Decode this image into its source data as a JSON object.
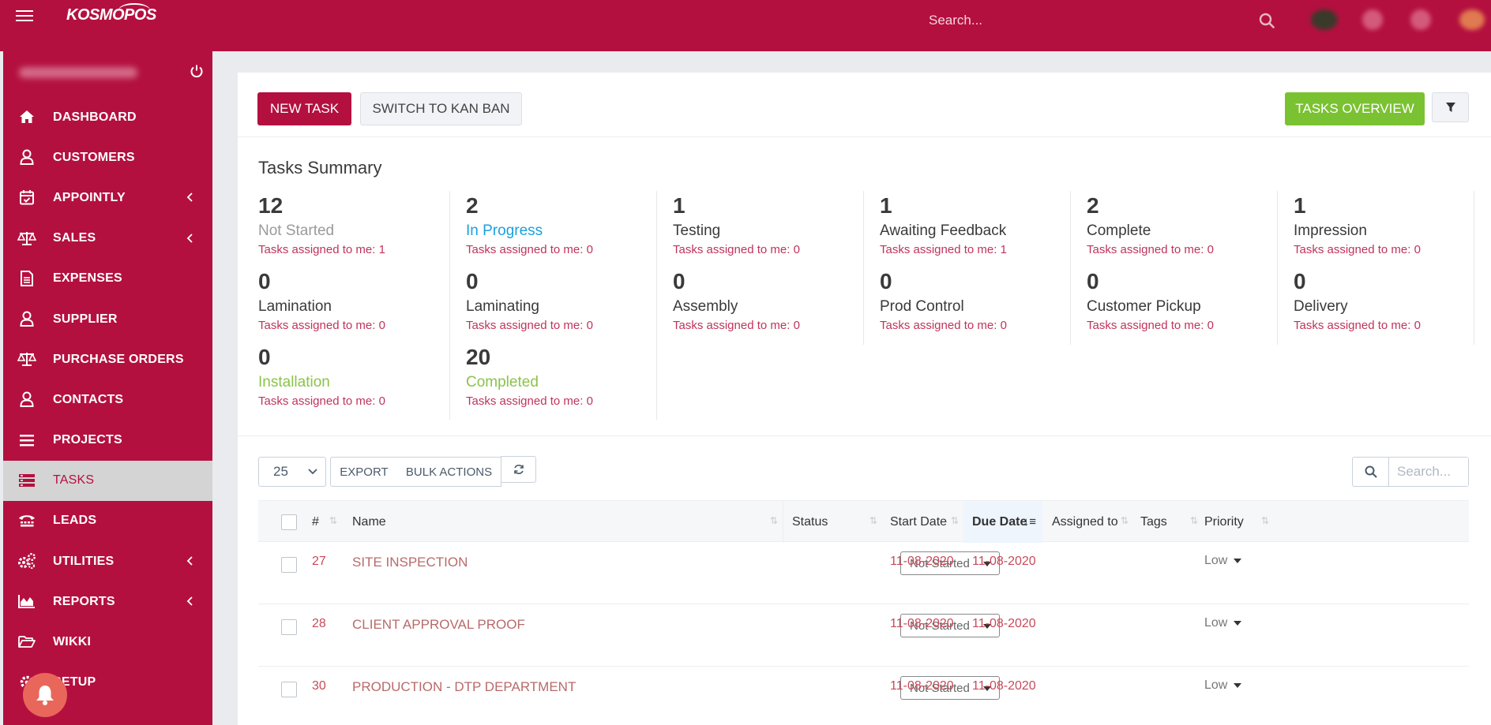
{
  "brand": {
    "logo_text": "KOSMOPOS"
  },
  "topbar": {
    "search_placeholder": "Search..."
  },
  "sidebar": {
    "items": [
      {
        "label": "DASHBOARD"
      },
      {
        "label": "CUSTOMERS"
      },
      {
        "label": "APPOINTLY"
      },
      {
        "label": "SALES"
      },
      {
        "label": "EXPENSES"
      },
      {
        "label": "SUPPLIER"
      },
      {
        "label": "PURCHASE ORDERS"
      },
      {
        "label": "CONTACTS"
      },
      {
        "label": "PROJECTS"
      },
      {
        "label": "TASKS"
      },
      {
        "label": "LEADS"
      },
      {
        "label": "UTILITIES"
      },
      {
        "label": "REPORTS"
      },
      {
        "label": "WIKKI"
      },
      {
        "label": "SETUP"
      }
    ],
    "active": "TASKS"
  },
  "toolbar": {
    "new_task": "NEW TASK",
    "switch_kanban": "SWITCH TO KAN BAN",
    "tasks_overview": "TASKS OVERVIEW"
  },
  "summary": {
    "title": "Tasks Summary",
    "stats": [
      {
        "count": "12",
        "name": "Not Started",
        "meta": "Tasks assigned to me: 1"
      },
      {
        "count": "2",
        "name": "In Progress",
        "meta": "Tasks assigned to me: 0"
      },
      {
        "count": "1",
        "name": "Testing",
        "meta": "Tasks assigned to me: 0"
      },
      {
        "count": "1",
        "name": "Awaiting Feedback",
        "meta": "Tasks assigned to me: 1"
      },
      {
        "count": "2",
        "name": "Complete",
        "meta": "Tasks assigned to me: 0"
      },
      {
        "count": "1",
        "name": "Impression",
        "meta": "Tasks assigned to me: 0"
      },
      {
        "count": "0",
        "name": "Lamination",
        "meta": "Tasks assigned to me: 0"
      },
      {
        "count": "0",
        "name": "Laminating",
        "meta": "Tasks assigned to me: 0"
      },
      {
        "count": "0",
        "name": "Assembly",
        "meta": "Tasks assigned to me: 0"
      },
      {
        "count": "0",
        "name": "Prod Control",
        "meta": "Tasks assigned to me: 0"
      },
      {
        "count": "0",
        "name": "Customer Pickup",
        "meta": "Tasks assigned to me: 0"
      },
      {
        "count": "0",
        "name": "Delivery",
        "meta": "Tasks assigned to me: 0"
      },
      {
        "count": "0",
        "name": "Installation",
        "meta": "Tasks assigned to me: 0"
      },
      {
        "count": "20",
        "name": "Completed",
        "meta": "Tasks assigned to me: 0"
      }
    ]
  },
  "table_tools": {
    "page_size": "25",
    "export": "EXPORT",
    "bulk_actions": "BULK ACTIONS",
    "search_placeholder": "Search..."
  },
  "table": {
    "headers": [
      "#",
      "Name",
      "Status",
      "Start Date",
      "Due Date",
      "Assigned to",
      "Tags",
      "Priority"
    ],
    "rows": [
      {
        "id": "27",
        "name": "SITE INSPECTION",
        "status": "Not Started",
        "start": "11-08-2020",
        "due": "11-08-2020",
        "priority": "Low"
      },
      {
        "id": "28",
        "name": "CLIENT APPROVAL PROOF",
        "status": "Not Started",
        "start": "11-08-2020",
        "due": "11-08-2020",
        "priority": "Low"
      },
      {
        "id": "30",
        "name": "PRODUCTION - DTP DEPARTMENT",
        "status": "Not Started",
        "start": "11-08-2020",
        "due": "11-08-2020",
        "priority": "Low"
      }
    ]
  },
  "colors": {
    "brand": "#b4103f",
    "green": "#7ac231",
    "in_progress": "#1aa0e0",
    "completed": "#8bc34a"
  }
}
